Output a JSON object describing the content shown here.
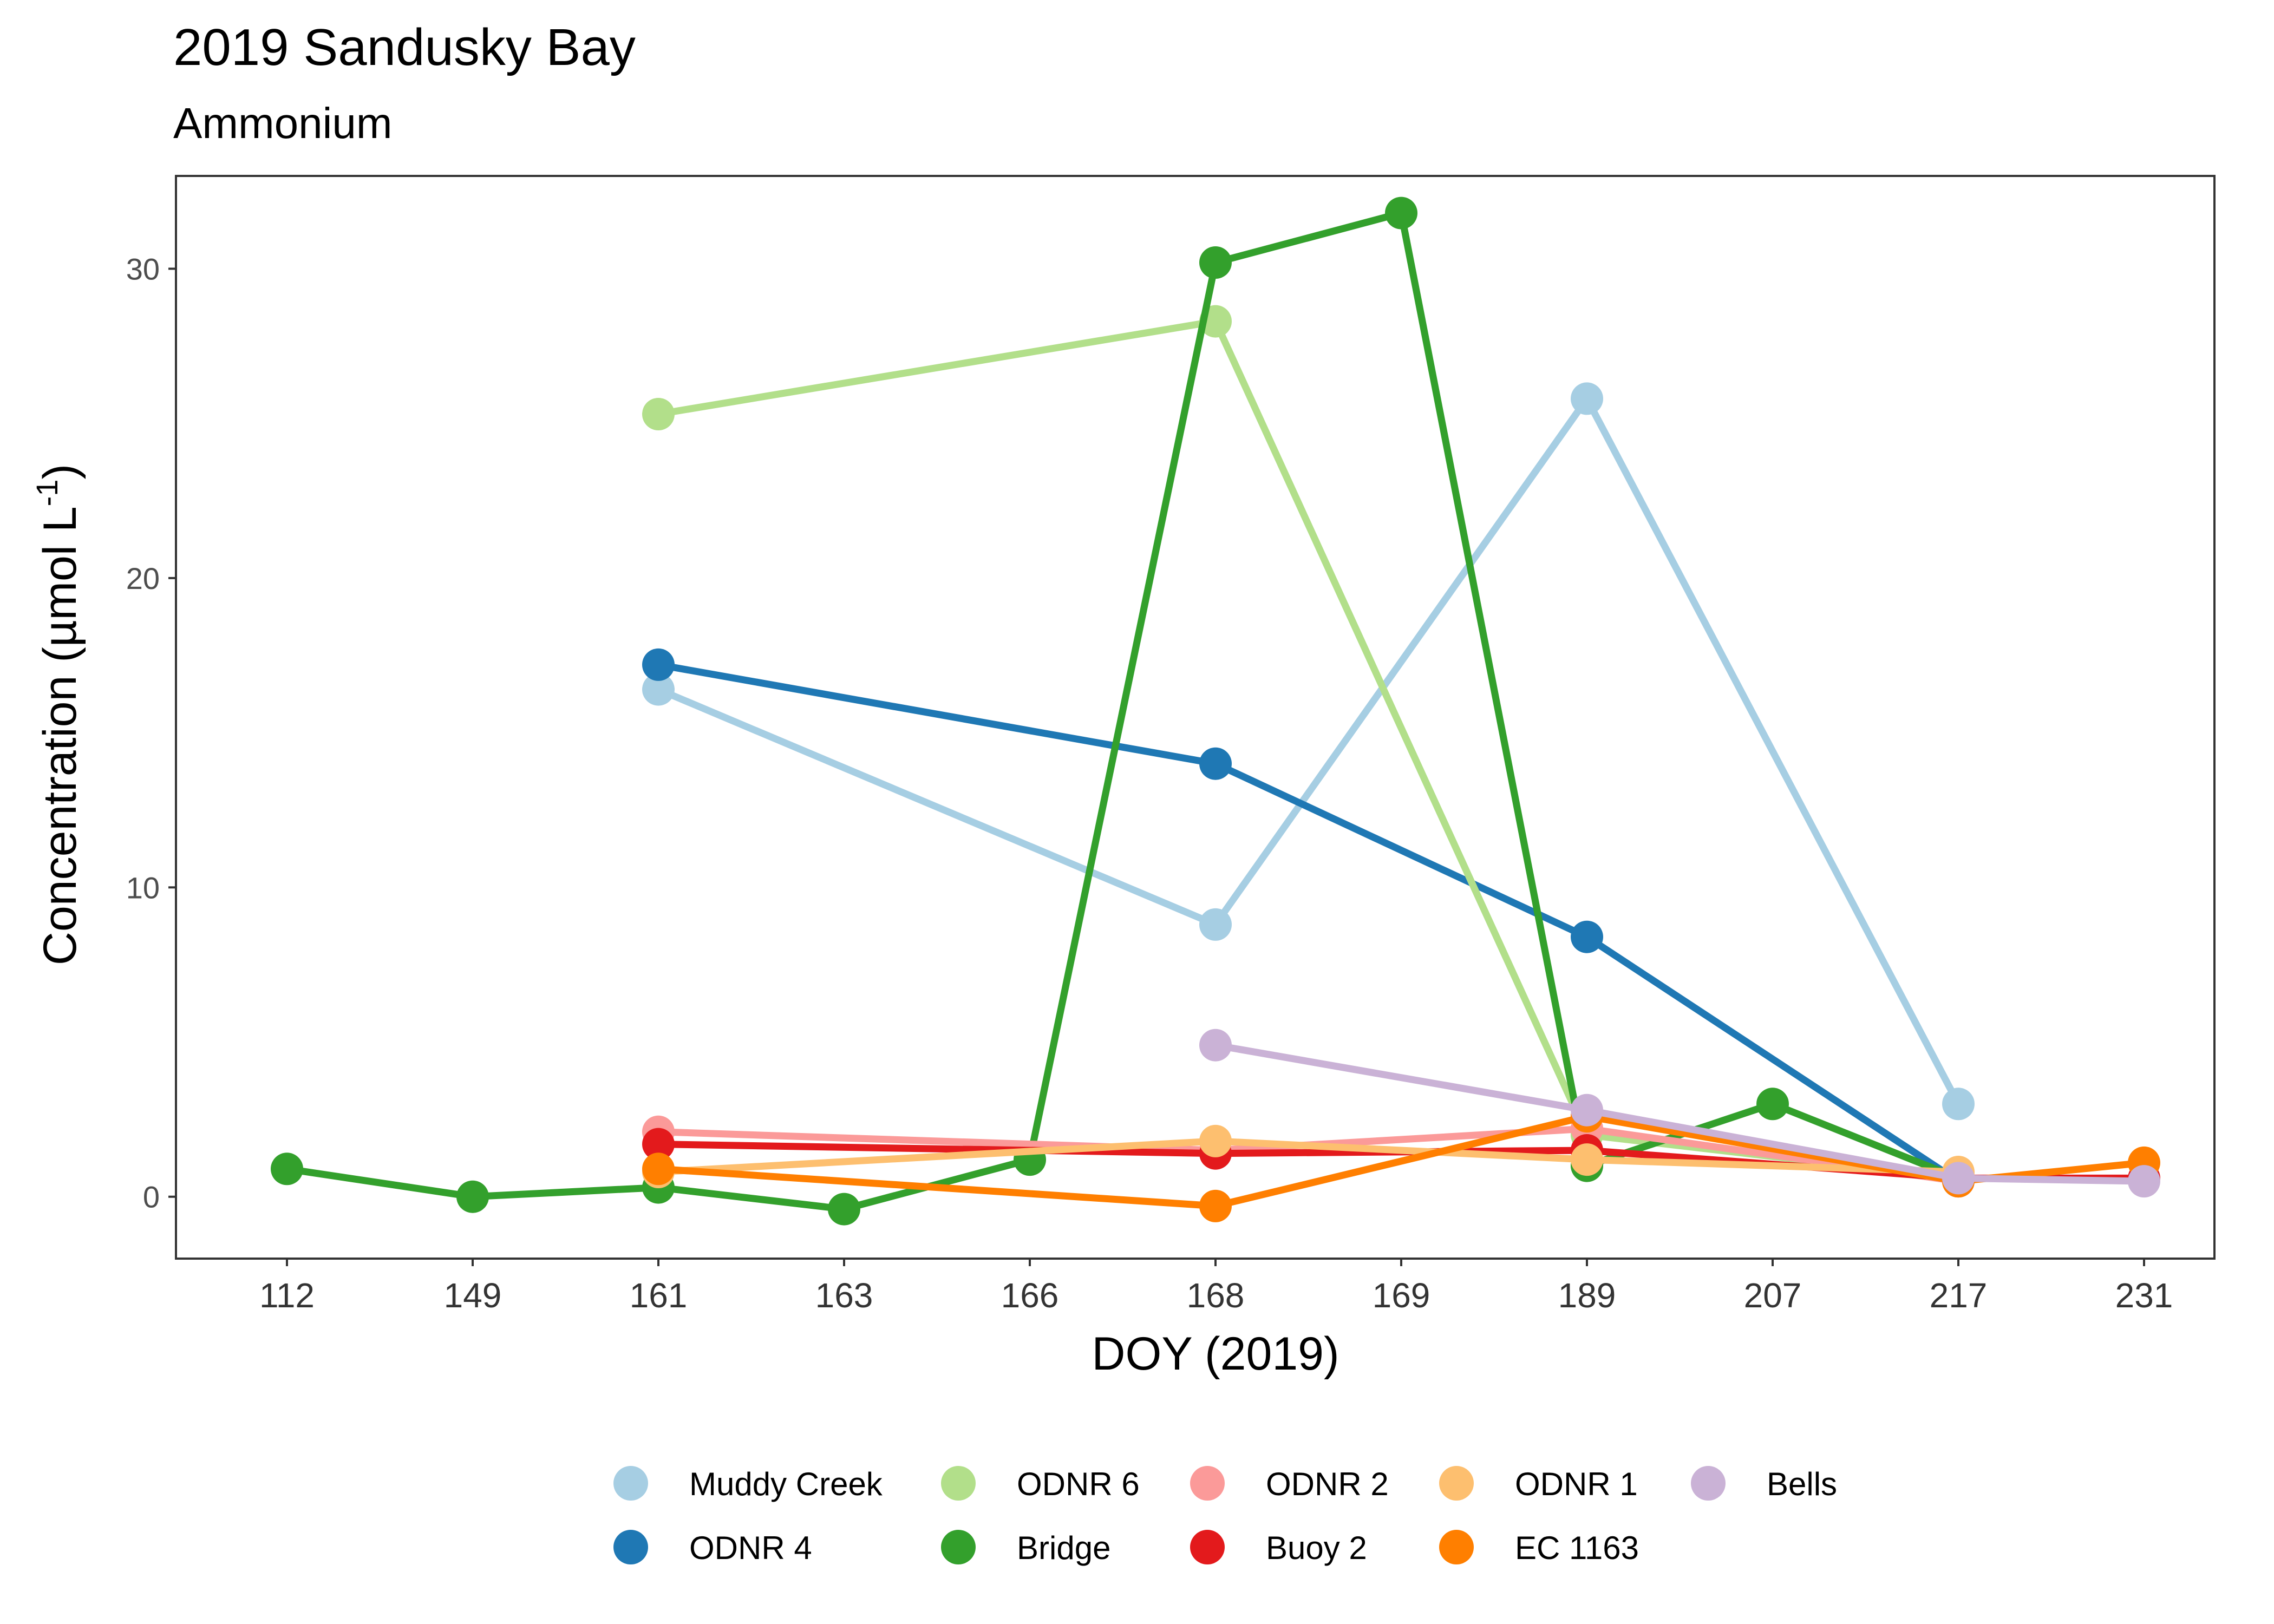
{
  "chart_data": {
    "type": "line",
    "title": "2019 Sandusky Bay",
    "subtitle": "Ammonium",
    "xlabel": "DOY (2019)",
    "ylabel": "Concentration (µmol L",
    "ylabel_superscript": "-1",
    "ylabel_suffix": ")",
    "categories": [
      "112",
      "149",
      "161",
      "163",
      "166",
      "168",
      "169",
      "189",
      "207",
      "217",
      "231"
    ],
    "ylim": [
      -2,
      33
    ],
    "yticks": [
      0,
      10,
      20,
      30
    ],
    "grid": false,
    "legend_position": "bottom",
    "series": [
      {
        "name": "Muddy Creek",
        "color": "#A6CEE3",
        "points": [
          [
            "161",
            16.4
          ],
          [
            "168",
            8.8
          ],
          [
            "189",
            25.8
          ],
          [
            "217",
            3.0
          ]
        ]
      },
      {
        "name": "ODNR 4",
        "color": "#1F78B4",
        "points": [
          [
            "161",
            17.2
          ],
          [
            "168",
            14.0
          ],
          [
            "189",
            8.4
          ],
          [
            "217",
            0.5
          ]
        ]
      },
      {
        "name": "ODNR 6",
        "color": "#B2DF8A",
        "points": [
          [
            "161",
            25.3
          ],
          [
            "168",
            28.3
          ],
          [
            "189",
            2.0
          ],
          [
            "217",
            0.6
          ]
        ]
      },
      {
        "name": "Bridge",
        "color": "#33A02C",
        "points": [
          [
            "112",
            0.9
          ],
          [
            "149",
            0.0
          ],
          [
            "161",
            0.3
          ],
          [
            "163",
            -0.4
          ],
          [
            "166",
            1.2
          ],
          [
            "168",
            30.2
          ],
          [
            "169",
            31.8
          ],
          [
            "189",
            1.0
          ],
          [
            "207",
            3.0
          ],
          [
            "217",
            0.6
          ]
        ]
      },
      {
        "name": "ODNR 2",
        "color": "#FB9A99",
        "points": [
          [
            "161",
            2.1
          ],
          [
            "168",
            1.5
          ],
          [
            "189",
            2.2
          ],
          [
            "217",
            0.5
          ]
        ]
      },
      {
        "name": "Buoy 2",
        "color": "#E31A1C",
        "points": [
          [
            "161",
            1.7
          ],
          [
            "168",
            1.4
          ],
          [
            "189",
            1.5
          ],
          [
            "217",
            0.6
          ],
          [
            "231",
            0.6
          ]
        ]
      },
      {
        "name": "ODNR 1",
        "color": "#FDBF6F",
        "points": [
          [
            "161",
            0.8
          ],
          [
            "168",
            1.8
          ],
          [
            "189",
            1.2
          ],
          [
            "217",
            0.8
          ]
        ]
      },
      {
        "name": "EC 1163",
        "color": "#FF7F00",
        "points": [
          [
            "161",
            0.9
          ],
          [
            "168",
            -0.3
          ],
          [
            "189",
            2.6
          ],
          [
            "217",
            0.5
          ],
          [
            "231",
            1.1
          ]
        ]
      },
      {
        "name": "Bells",
        "color": "#CAB2D6",
        "points": [
          [
            "168",
            4.9
          ],
          [
            "189",
            2.8
          ],
          [
            "217",
            0.6
          ],
          [
            "231",
            0.5
          ]
        ]
      }
    ]
  }
}
